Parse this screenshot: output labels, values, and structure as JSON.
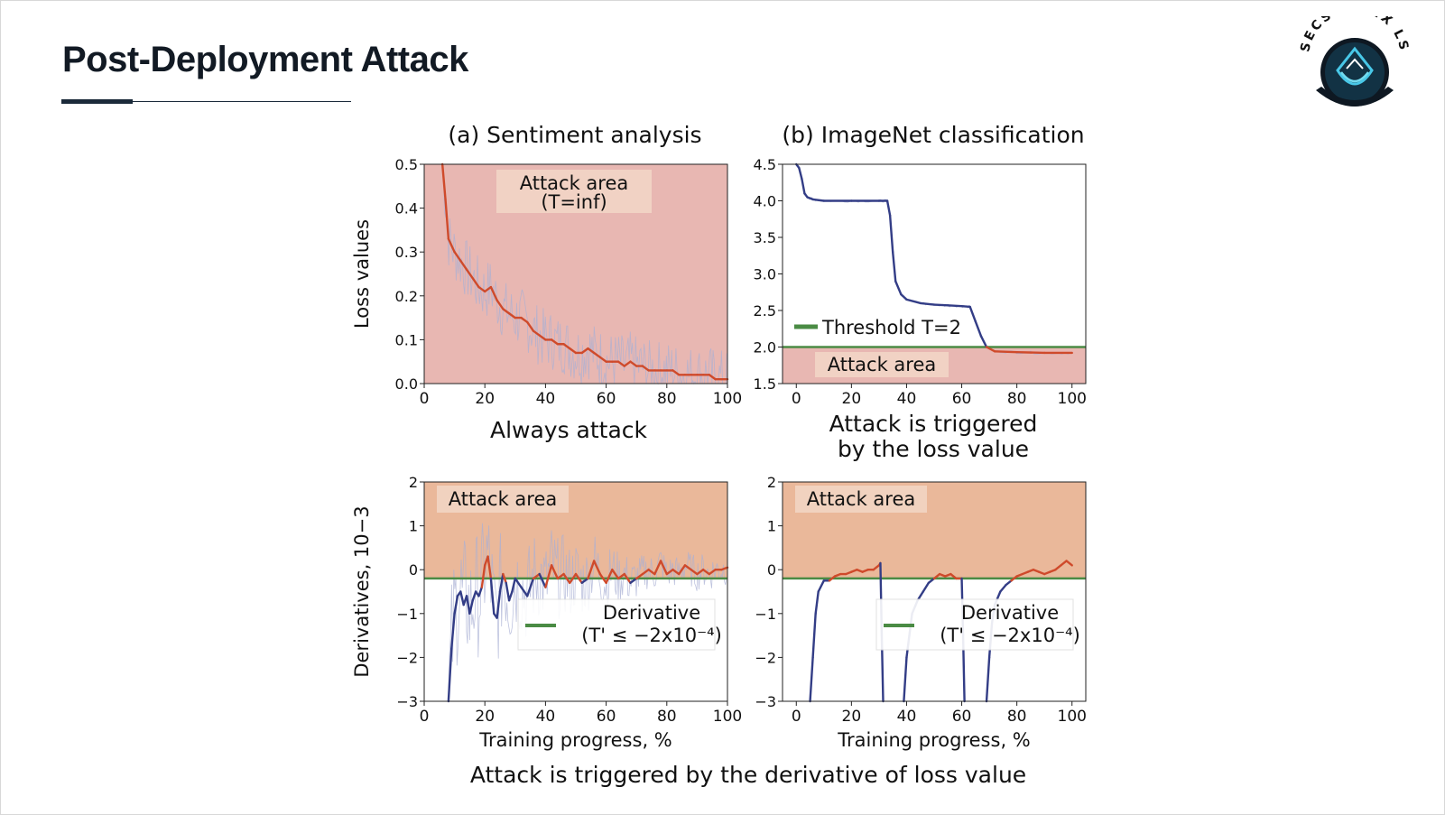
{
  "slide": {
    "title": "Post-Deployment Attack",
    "logo_text": "SECSURENX LS"
  },
  "figure": {
    "caption": "Attack is triggered by the derivative of loss value",
    "col_a_title": "(a) Sentiment analysis",
    "col_b_title": "(b) ImageNet classification",
    "top_a_subcaption": "Always attack",
    "top_b_subcaption": [
      "Attack is triggered",
      "by the loss value"
    ],
    "colors": {
      "attack_fill_top": "#e8b7b2",
      "attack_fill_bottom": "#eab89a",
      "orange_line": "#cf4a2b",
      "blue_line": "#333d86",
      "noise": "#aab0d4",
      "threshold": "#4a8b44",
      "label_box": "#f3d8c8"
    }
  },
  "chart_data": [
    {
      "type": "line",
      "panel": "top-left",
      "ylabel": "Loss values",
      "xlim": [
        0,
        100
      ],
      "ylim": [
        0,
        0.5
      ],
      "xticks": [
        0,
        20,
        40,
        60,
        80,
        100
      ],
      "yticks": [
        0.0,
        0.1,
        0.2,
        0.3,
        0.4,
        0.5
      ],
      "ytick_labels": [
        "0.0",
        "0.1",
        "0.2",
        "0.3",
        "0.4",
        "0.5"
      ],
      "annotation": [
        "Attack area",
        "(T=inf)"
      ],
      "shaded_attack_area": "all",
      "series": [
        {
          "x": [
            6,
            7,
            8,
            10,
            12,
            14,
            16,
            18,
            20,
            22,
            24,
            26,
            28,
            30,
            32,
            34,
            36,
            38,
            40,
            42,
            44,
            46,
            48,
            50,
            52,
            54,
            56,
            58,
            60,
            62,
            64,
            66,
            68,
            70,
            72,
            74,
            76,
            78,
            80,
            82,
            84,
            86,
            88,
            90,
            92,
            94,
            96,
            98,
            100
          ],
          "y": [
            0.5,
            0.42,
            0.33,
            0.3,
            0.28,
            0.26,
            0.24,
            0.22,
            0.21,
            0.22,
            0.19,
            0.17,
            0.16,
            0.15,
            0.15,
            0.14,
            0.12,
            0.11,
            0.1,
            0.1,
            0.09,
            0.09,
            0.08,
            0.07,
            0.07,
            0.08,
            0.07,
            0.06,
            0.05,
            0.05,
            0.05,
            0.04,
            0.05,
            0.04,
            0.04,
            0.03,
            0.03,
            0.03,
            0.03,
            0.03,
            0.02,
            0.02,
            0.02,
            0.02,
            0.02,
            0.02,
            0.01,
            0.01,
            0.01
          ]
        }
      ]
    },
    {
      "type": "line",
      "panel": "top-right",
      "xlim": [
        -5,
        105
      ],
      "ylim": [
        1.5,
        4.5
      ],
      "xticks": [
        0,
        20,
        40,
        60,
        80,
        100
      ],
      "yticks": [
        1.5,
        2.0,
        2.5,
        3.0,
        3.5,
        4.0,
        4.5
      ],
      "ytick_labels": [
        "1.5",
        "2.0",
        "2.5",
        "3.0",
        "3.5",
        "4.0",
        "4.5"
      ],
      "threshold": 2.0,
      "legend": "Threshold T=2",
      "annotation": [
        "Attack area"
      ],
      "series": [
        {
          "x": [
            0,
            1,
            2,
            3,
            4,
            6,
            10,
            20,
            30,
            33,
            34,
            35,
            36,
            38,
            40,
            45,
            50,
            55,
            60,
            63,
            65,
            67,
            69,
            72,
            80,
            90,
            100
          ],
          "y": [
            4.5,
            4.45,
            4.3,
            4.1,
            4.05,
            4.02,
            4.0,
            4.0,
            4.0,
            4.0,
            3.8,
            3.3,
            2.9,
            2.72,
            2.65,
            2.6,
            2.58,
            2.57,
            2.56,
            2.55,
            2.35,
            2.15,
            2.0,
            1.94,
            1.93,
            1.92,
            1.92
          ]
        }
      ]
    },
    {
      "type": "line",
      "panel": "bottom-left",
      "ylabel": "Derivatives, 10−3",
      "xlabel": "Training progress, %",
      "xlim": [
        0,
        100
      ],
      "ylim": [
        -3,
        2
      ],
      "xticks": [
        0,
        20,
        40,
        60,
        80,
        100
      ],
      "yticks": [
        -3,
        -2,
        -1,
        0,
        1,
        2
      ],
      "ytick_labels": [
        "−3",
        "−2",
        "−1",
        "0",
        "1",
        "2"
      ],
      "threshold": -0.2,
      "legend": [
        "Derivative",
        "(T' ≤ −2x10⁻⁴)"
      ],
      "annotation": [
        "Attack area"
      ],
      "series": [
        {
          "x": [
            8,
            9,
            10,
            11,
            12,
            13,
            14,
            15,
            16,
            17,
            18,
            19,
            20,
            21,
            22,
            23,
            24,
            25,
            26,
            27,
            28,
            29,
            30,
            32,
            34,
            36,
            38,
            40,
            42,
            44,
            46,
            48,
            50,
            52,
            54,
            56,
            58,
            60,
            62,
            64,
            66,
            68,
            70,
            72,
            74,
            76,
            78,
            80,
            82,
            84,
            86,
            88,
            90,
            92,
            94,
            96,
            98,
            100
          ],
          "y": [
            -3,
            -1.8,
            -1.0,
            -0.6,
            -0.5,
            -0.8,
            -0.6,
            -1.0,
            -0.7,
            -0.5,
            -0.6,
            -0.4,
            0.1,
            0.3,
            -0.2,
            -1.0,
            -1.1,
            -0.5,
            -0.1,
            -0.3,
            -0.7,
            -0.5,
            -0.2,
            -0.4,
            -0.6,
            -0.2,
            -0.1,
            -0.4,
            0.1,
            -0.2,
            -0.1,
            -0.3,
            -0.1,
            -0.3,
            -0.2,
            0.2,
            -0.1,
            -0.3,
            0.0,
            -0.2,
            -0.1,
            -0.3,
            -0.2,
            -0.1,
            0.0,
            -0.1,
            0.2,
            -0.1,
            0.0,
            -0.1,
            0.1,
            0.0,
            -0.1,
            0.0,
            -0.1,
            0.0,
            0.0,
            0.05
          ]
        }
      ]
    },
    {
      "type": "line",
      "panel": "bottom-right",
      "xlabel": "Training progress, %",
      "xlim": [
        -5,
        105
      ],
      "ylim": [
        -3,
        2
      ],
      "xticks": [
        0,
        20,
        40,
        60,
        80,
        100
      ],
      "yticks": [
        -3,
        -2,
        -1,
        0,
        1,
        2
      ],
      "ytick_labels": [
        "−3",
        "−2",
        "−1",
        "0",
        "1",
        "2"
      ],
      "threshold": -0.2,
      "legend": [
        "Derivative",
        "(T' ≤ −2x10⁻⁴)"
      ],
      "annotation": [
        "Attack area"
      ],
      "series": [
        {
          "x": [
            5,
            6,
            7,
            8,
            10,
            12,
            14,
            16,
            18,
            20,
            22,
            24,
            26,
            28,
            30,
            30.5,
            31,
            31.5
          ],
          "y": [
            -3,
            -2.0,
            -1.0,
            -0.5,
            -0.25,
            -0.25,
            -0.15,
            -0.1,
            -0.1,
            -0.05,
            0.0,
            -0.05,
            0.0,
            0.0,
            0.1,
            0.15,
            -1.5,
            -3
          ]
        },
        {
          "x": [
            39,
            40,
            41,
            42,
            44,
            46,
            48,
            50,
            52,
            54,
            56,
            58,
            60,
            60.5,
            61
          ],
          "y": [
            -3,
            -2.0,
            -1.5,
            -1.0,
            -0.7,
            -0.5,
            -0.3,
            -0.2,
            -0.1,
            -0.15,
            -0.1,
            -0.2,
            -0.2,
            -1.5,
            -3
          ]
        },
        {
          "x": [
            69,
            70,
            71,
            72,
            74,
            76,
            78,
            80,
            82,
            84,
            86,
            88,
            90,
            92,
            94,
            96,
            98,
            100
          ],
          "y": [
            -3,
            -2.0,
            -1.2,
            -0.8,
            -0.5,
            -0.35,
            -0.25,
            -0.15,
            -0.1,
            -0.05,
            0.0,
            -0.05,
            -0.1,
            -0.05,
            0.0,
            0.1,
            0.2,
            0.1
          ]
        }
      ]
    }
  ]
}
